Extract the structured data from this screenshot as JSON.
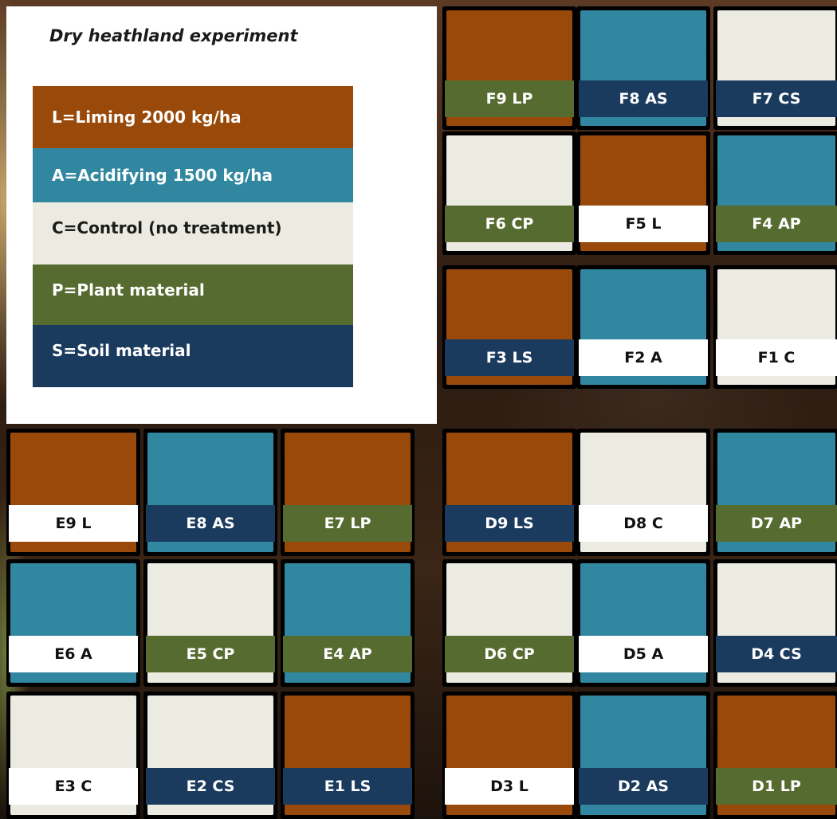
{
  "title": "Dry heathland experiment",
  "colors": {
    "liming": "#994a0a",
    "acidifying": "#31879f",
    "control": "#ecebe1",
    "plant": "#566b2f",
    "soil": "#1a3a5e",
    "white": "#ffffff"
  },
  "legend": [
    {
      "label": "L=Liming 2000 kg/ha",
      "color": "#994a0a",
      "text_color": "#ffffff"
    },
    {
      "label": "A=Acidifying 1500 kg/ha",
      "color": "#31879f",
      "text_color": "#ffffff"
    },
    {
      "label": "C=Control (no treatment)",
      "color": "#ecebe1",
      "text_color": "#1b1b1b"
    },
    {
      "label": "P=Plant material",
      "color": "#566b2f",
      "text_color": "#ffffff"
    },
    {
      "label": "S=Soil material",
      "color": "#1a3a5e",
      "text_color": "#ffffff"
    }
  ],
  "blocks": {
    "F": [
      {
        "id": "F9 LP",
        "treatment": "liming",
        "material": "plant"
      },
      {
        "id": "F8 AS",
        "treatment": "acidifying",
        "material": "soil"
      },
      {
        "id": "F7 CS",
        "treatment": "control",
        "material": "soil"
      },
      {
        "id": "F6 CP",
        "treatment": "control",
        "material": "plant"
      },
      {
        "id": "F5 L",
        "treatment": "liming",
        "material": "none"
      },
      {
        "id": "F4 AP",
        "treatment": "acidifying",
        "material": "plant"
      },
      {
        "id": "F3 LS",
        "treatment": "liming",
        "material": "soil"
      },
      {
        "id": "F2 A",
        "treatment": "acidifying",
        "material": "none"
      },
      {
        "id": "F1 C",
        "treatment": "control",
        "material": "none"
      }
    ],
    "E": [
      {
        "id": "E9 L",
        "treatment": "liming",
        "material": "none"
      },
      {
        "id": "E8 AS",
        "treatment": "acidifying",
        "material": "soil"
      },
      {
        "id": "E7 LP",
        "treatment": "liming",
        "material": "plant"
      },
      {
        "id": "E6 A",
        "treatment": "acidifying",
        "material": "none"
      },
      {
        "id": "E5 CP",
        "treatment": "control",
        "material": "plant"
      },
      {
        "id": "E4 AP",
        "treatment": "acidifying",
        "material": "plant"
      },
      {
        "id": "E3 C",
        "treatment": "control",
        "material": "none"
      },
      {
        "id": "E2 CS",
        "treatment": "control",
        "material": "soil"
      },
      {
        "id": "E1 LS",
        "treatment": "liming",
        "material": "soil"
      }
    ],
    "D": [
      {
        "id": "D9 LS",
        "treatment": "liming",
        "material": "soil"
      },
      {
        "id": "D8 C",
        "treatment": "control",
        "material": "none"
      },
      {
        "id": "D7 AP",
        "treatment": "acidifying",
        "material": "plant"
      },
      {
        "id": "D6 CP",
        "treatment": "control",
        "material": "plant"
      },
      {
        "id": "D5 A",
        "treatment": "acidifying",
        "material": "none"
      },
      {
        "id": "D4 CS",
        "treatment": "control",
        "material": "soil"
      },
      {
        "id": "D3 L",
        "treatment": "liming",
        "material": "none"
      },
      {
        "id": "D2 AS",
        "treatment": "acidifying",
        "material": "soil"
      },
      {
        "id": "D1 LP",
        "treatment": "liming",
        "material": "plant"
      }
    ]
  }
}
